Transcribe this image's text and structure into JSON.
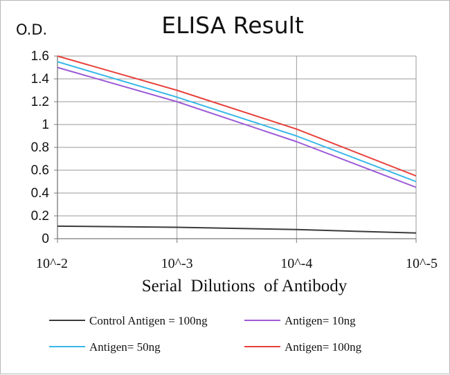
{
  "chart_data": {
    "type": "line",
    "title": "ELISA Result",
    "ylabel": "O.D.",
    "xlabel": "Serial  Dilutions  of Antibody",
    "categories": [
      "10^-2",
      "10^-3",
      "10^-4",
      "10^-5"
    ],
    "yticks": [
      "1.6",
      "1.4",
      "1.2",
      "1",
      "0.8",
      "0.6",
      "0.4",
      "0.2",
      "0"
    ],
    "ylim": [
      0,
      1.6
    ],
    "grid": true,
    "legend_position": "bottom",
    "series": [
      {
        "name": "Control Antigen = 100ng",
        "color": "#3a3a3a",
        "values": [
          0.11,
          0.1,
          0.08,
          0.05
        ]
      },
      {
        "name": "Antigen= 10ng",
        "color": "#9b59d6",
        "values": [
          1.5,
          1.2,
          0.85,
          0.45
        ]
      },
      {
        "name": "Antigen= 50ng",
        "color": "#38b8e8",
        "values": [
          1.55,
          1.24,
          0.9,
          0.5
        ]
      },
      {
        "name": "Antigen= 100ng",
        "color": "#e8403a",
        "values": [
          1.6,
          1.3,
          0.96,
          0.55
        ]
      }
    ]
  }
}
